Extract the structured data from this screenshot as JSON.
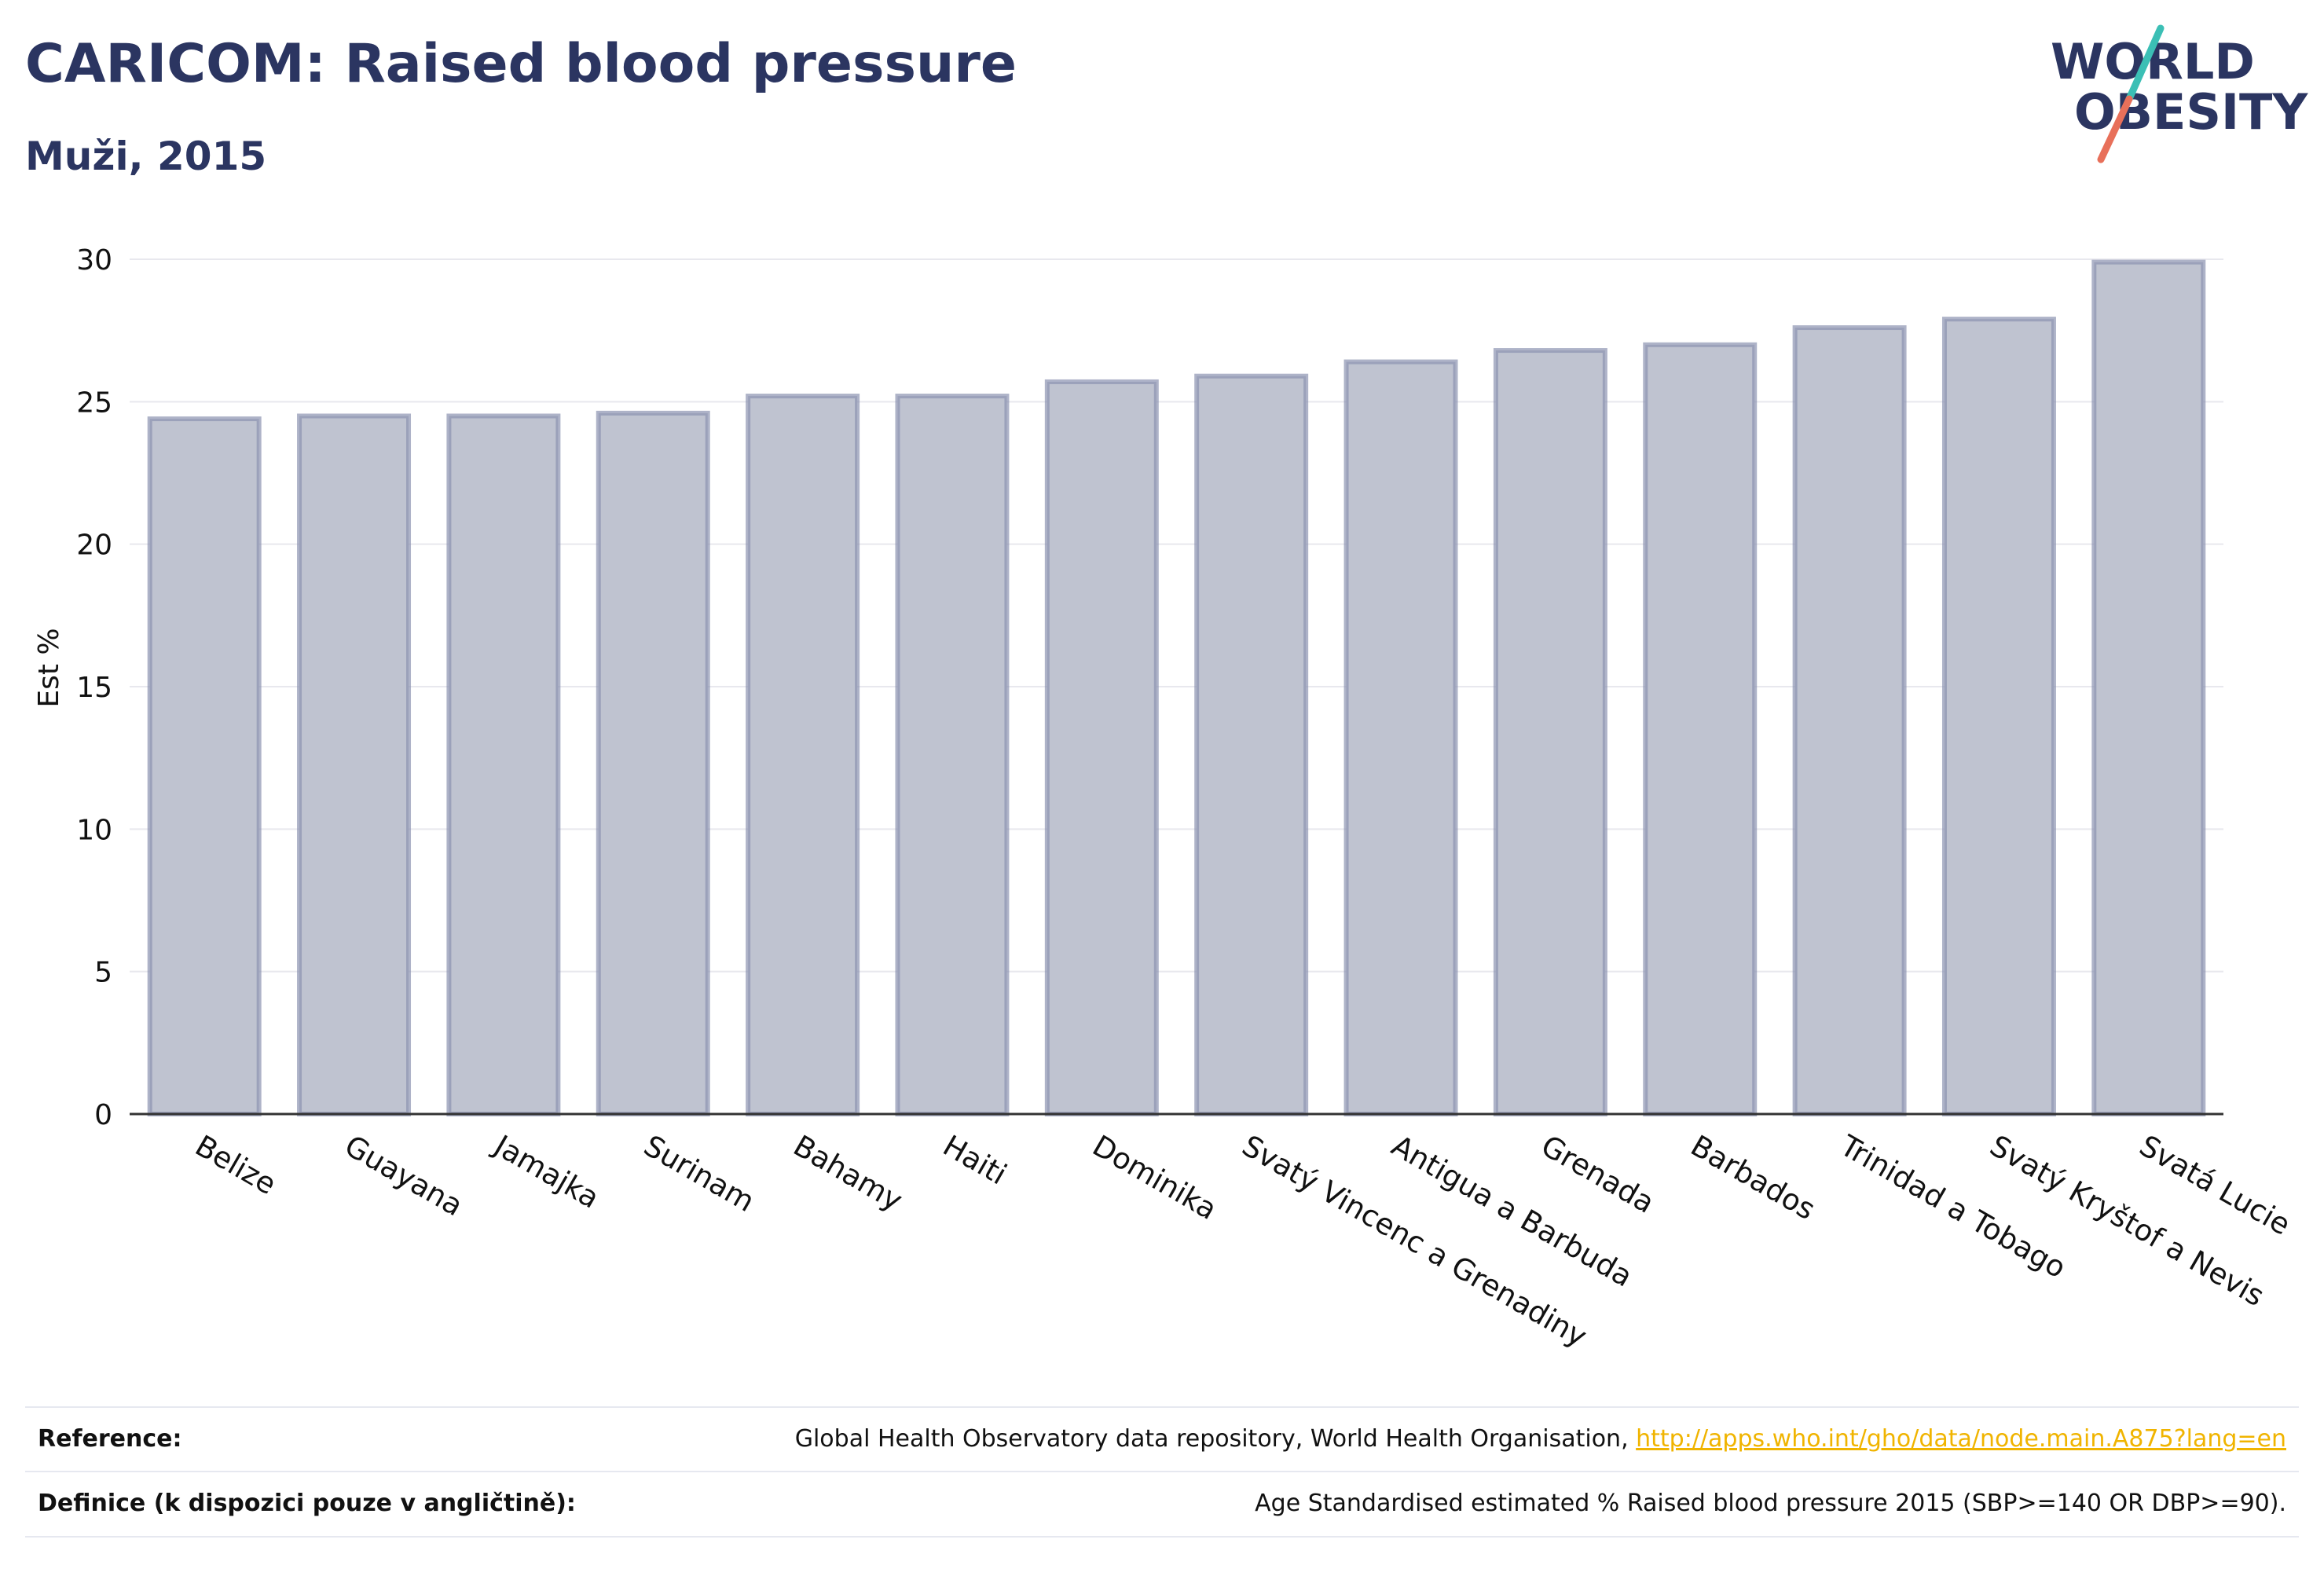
{
  "header": {
    "title": "CARICOM: Raised blood pressure",
    "subtitle": "Muži, 2015"
  },
  "logo": {
    "line1": "WORLD",
    "line2": "OBESITY",
    "colors": {
      "text": "#2b3561",
      "slash_top": "#3bbfb5",
      "slash_bottom": "#e8705a"
    }
  },
  "colors": {
    "bar_fill": "#bfc3d0",
    "bar_stroke": "#8c93b0",
    "grid": "#e8e8ee",
    "axis": "#333333",
    "text": "#111111"
  },
  "chart_data": {
    "type": "bar",
    "ylabel": "Est %",
    "ylim": [
      0,
      30
    ],
    "yticks": [
      0,
      5,
      10,
      15,
      20,
      25,
      30
    ],
    "grid": true,
    "categories": [
      "Belize",
      "Guayana",
      "Jamajka",
      "Surinam",
      "Bahamy",
      "Haiti",
      "Dominika",
      "Svatý Vincenc a Grenadiny",
      "Antigua a Barbuda",
      "Grenada",
      "Barbados",
      "Trinidad a Tobago",
      "Svatý Kryštof a Nevis",
      "Svatá Lucie"
    ],
    "values": [
      24.4,
      24.5,
      24.5,
      24.6,
      25.2,
      25.2,
      25.7,
      25.9,
      26.4,
      26.8,
      27.0,
      27.6,
      27.9,
      29.9
    ]
  },
  "footer": {
    "reference_label": "Reference:",
    "reference_text": "Global Health Observatory data repository, World Health Organisation, ",
    "reference_link": "http://apps.who.int/gho/data/node.main.A875?lang=en",
    "definition_label": "Definice (k dispozici pouze v angličtině):",
    "definition_text": "Age Standardised estimated % Raised blood pressure 2015 (SBP>=140 OR DBP>=90)."
  }
}
